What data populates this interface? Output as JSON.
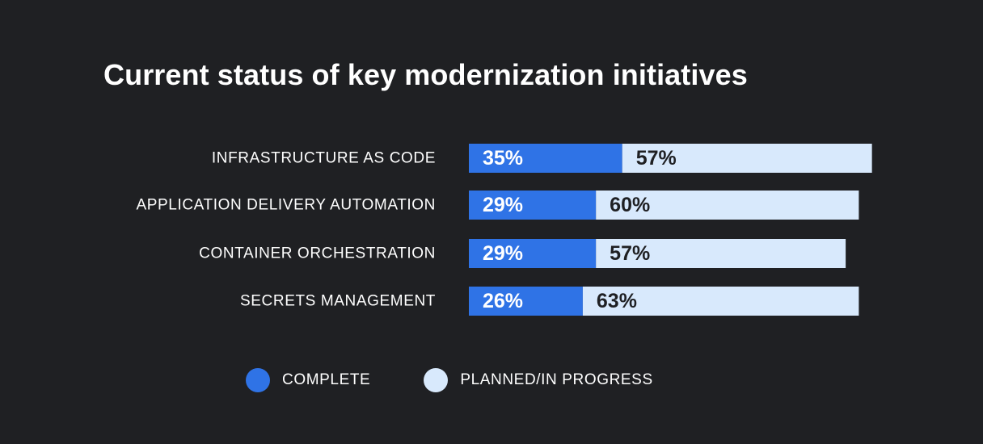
{
  "chart_data": {
    "type": "bar",
    "orientation": "horizontal",
    "stacked": true,
    "title": "Current status of key modernization initiatives",
    "categories": [
      "INFRASTRUCTURE AS CODE",
      "APPLICATION DELIVERY AUTOMATION",
      "CONTAINER ORCHESTRATION",
      "SECRETS MANAGEMENT"
    ],
    "series": [
      {
        "name": "COMPLETE",
        "color": "#2f73e6",
        "label_color": "#ffffff",
        "values": [
          35,
          29,
          29,
          26
        ],
        "labels": [
          "35%",
          "29%",
          "29%",
          "26%"
        ]
      },
      {
        "name": "PLANNED/IN PROGRESS",
        "color": "#d8e9fc",
        "label_color": "#1f2023",
        "values": [
          57,
          60,
          57,
          63
        ],
        "labels": [
          "57%",
          "60%",
          "57%",
          "63%"
        ]
      }
    ],
    "xlim": [
      0,
      100
    ],
    "grid": false,
    "legend_position": "bottom"
  },
  "colors": {
    "background": "#1f2023",
    "text": "#ffffff"
  }
}
